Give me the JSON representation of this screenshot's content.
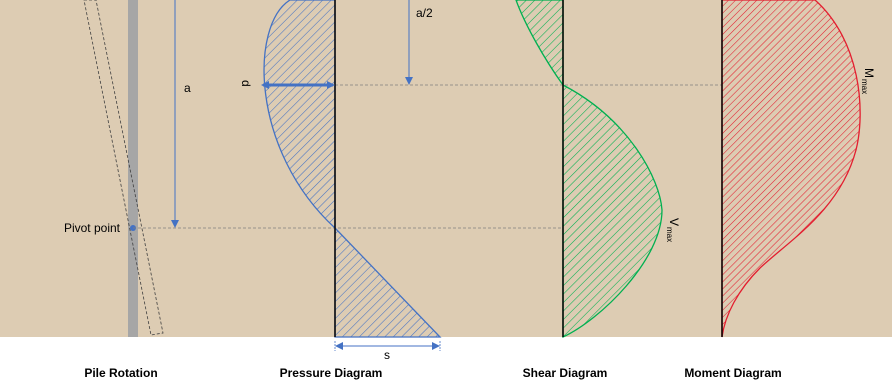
{
  "labels": {
    "a": "a",
    "a_half": "a/2",
    "d": "d",
    "s": "s",
    "pivot_point": "Pivot point",
    "m_max_main": "M",
    "m_max_sub": "max",
    "v_max_main": "V",
    "v_max_sub": "max"
  },
  "captions": {
    "pile_rotation": "Pile Rotation",
    "pressure_diagram": "Pressure Diagram",
    "shear_diagram": "Shear Diagram",
    "moment_diagram": "Moment Diagram"
  },
  "colors": {
    "soil": "#DDCCB3",
    "pile": "#A6A6A6",
    "pressure": "#4472C4",
    "shear": "#00B050",
    "moment": "#E31E2F",
    "axis": "#000000",
    "guide": "#7F7F7F"
  }
}
